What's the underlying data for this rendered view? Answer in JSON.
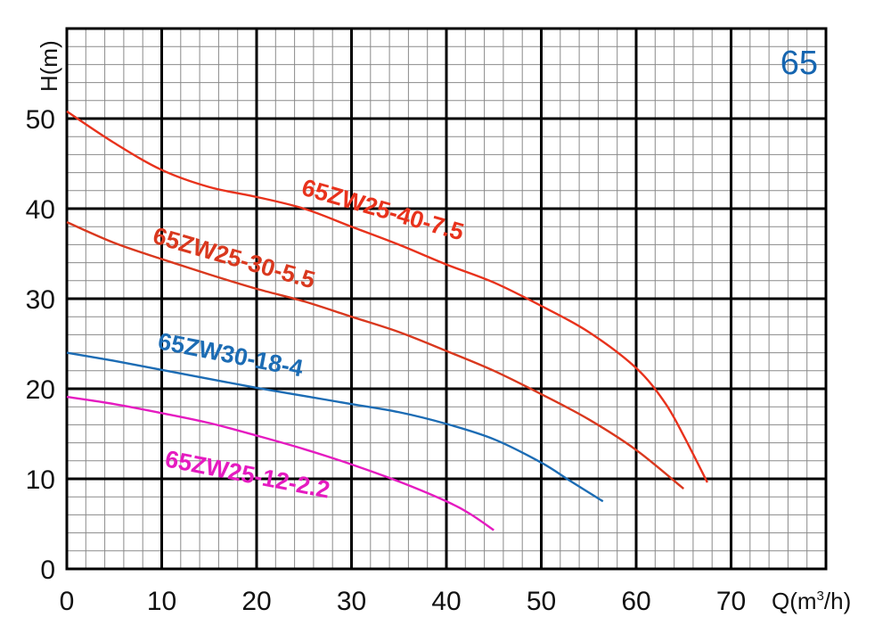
{
  "chart_data": {
    "type": "line",
    "corner_label": "65",
    "corner_color": "#1565b0",
    "xlabel": "Q(m³/h)",
    "xlabel_main": "Q(m",
    "xlabel_sup": "3",
    "xlabel_tail": "/h)",
    "ylabel": "H(m)",
    "xlim": [
      0,
      80
    ],
    "ylim": [
      0,
      60
    ],
    "x_ticks": [
      "0",
      "10",
      "20",
      "30",
      "40",
      "50",
      "60",
      "70"
    ],
    "y_ticks": [
      "0",
      "10",
      "20",
      "30",
      "40",
      "50"
    ],
    "grid": "major every 10 units, minor every 2 units",
    "series": [
      {
        "name": "65ZW25-40-7.5",
        "color": "#e8321c",
        "x": [
          0,
          5,
          10,
          15,
          20,
          25,
          30,
          35,
          40,
          45,
          50,
          55,
          60,
          63,
          65,
          67.5
        ],
        "y": [
          50.8,
          47.3,
          44.3,
          42.4,
          41.3,
          40.0,
          38.0,
          36.0,
          33.8,
          31.8,
          29.2,
          26.3,
          22.3,
          18.5,
          14.8,
          9.6
        ]
      },
      {
        "name": "65ZW25-30-5.5",
        "color": "#d9381e",
        "x": [
          0,
          5,
          10,
          15,
          20,
          25,
          30,
          35,
          40,
          45,
          50,
          55,
          60,
          65
        ],
        "y": [
          38.5,
          36.2,
          34.4,
          32.7,
          31.1,
          29.7,
          28.0,
          26.3,
          24.2,
          22.0,
          19.4,
          16.6,
          13.2,
          8.9
        ]
      },
      {
        "name": "65ZW30-18-4",
        "color": "#1c6cb4",
        "x": [
          0,
          5,
          10,
          15,
          20,
          25,
          30,
          35,
          40,
          45,
          50,
          53,
          56.5
        ],
        "y": [
          24.0,
          23.1,
          22.1,
          21.1,
          20.1,
          19.2,
          18.3,
          17.4,
          16.1,
          14.4,
          11.8,
          9.8,
          7.5
        ]
      },
      {
        "name": "65ZW25-12-2.2",
        "color": "#e51bc0",
        "x": [
          0,
          5,
          10,
          15,
          20,
          25,
          30,
          35,
          40,
          42.5,
          45
        ],
        "y": [
          19.1,
          18.3,
          17.3,
          16.2,
          14.8,
          13.3,
          11.6,
          9.7,
          7.5,
          6.1,
          4.3
        ]
      }
    ],
    "series_labels": [
      {
        "text": "65ZW25-40-7.5",
        "color": "#e8321c"
      },
      {
        "text": "65ZW25-30-5.5",
        "color": "#d9381e"
      },
      {
        "text": "65ZW30-18-4",
        "color": "#1c6cb4"
      },
      {
        "text": "65ZW25-12-2.2",
        "color": "#e51bc0"
      }
    ]
  }
}
